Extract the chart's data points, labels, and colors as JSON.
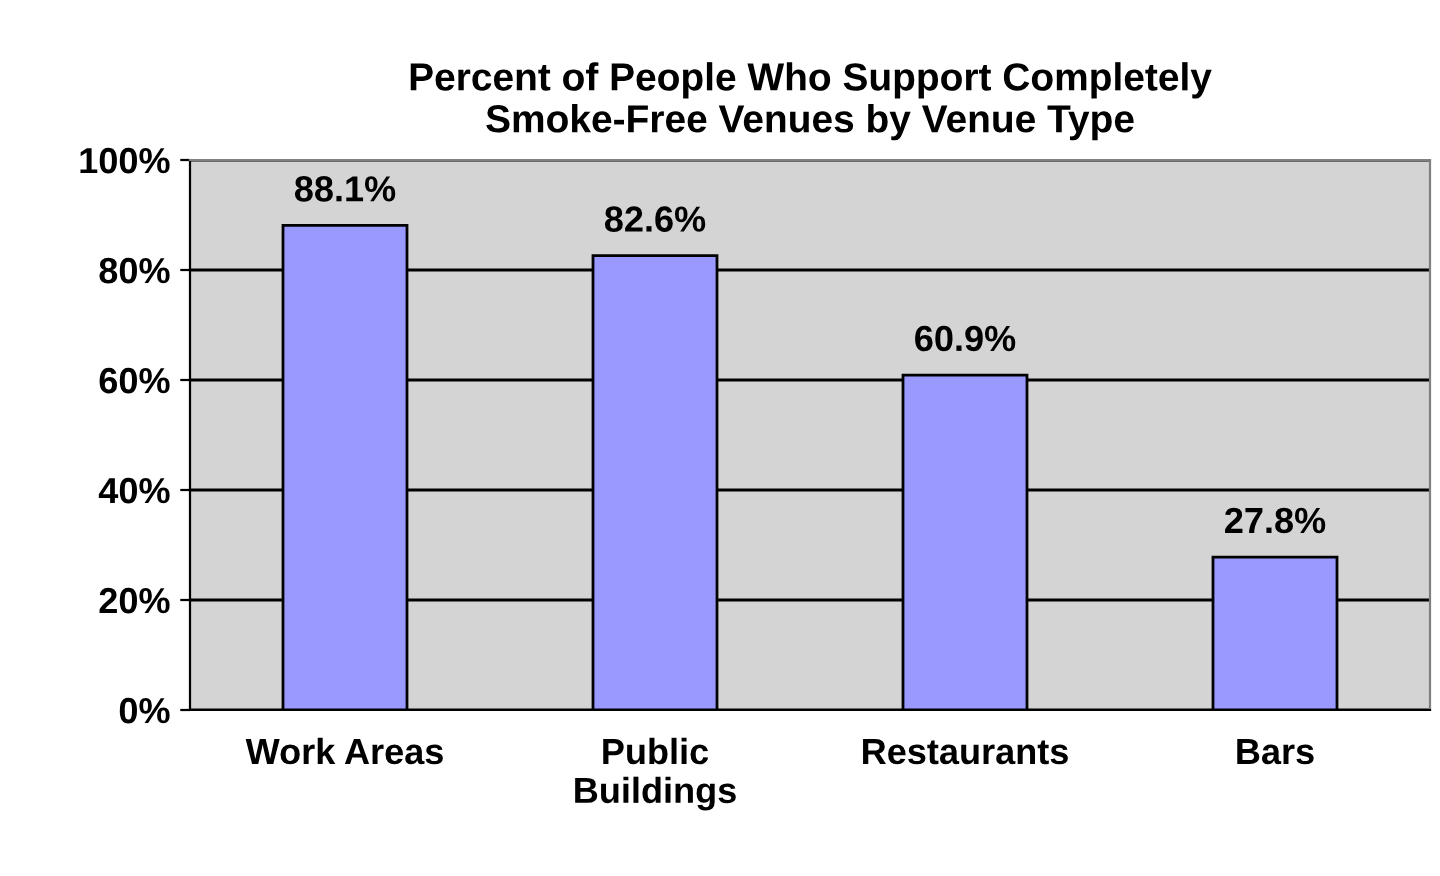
{
  "chart_data": {
    "type": "bar",
    "title": "Percent of People Who Support Completely\nSmoke-Free Venues by Venue Type",
    "categories": [
      "Work Areas",
      "Public\nBuildings",
      "Restaurants",
      "Bars"
    ],
    "values": [
      88.1,
      82.6,
      60.9,
      27.8
    ],
    "color": "#9999ff",
    "value_labels": [
      "88.1%",
      "82.6%",
      "60.9%",
      "27.8%"
    ],
    "ylim": [
      0,
      100
    ],
    "yticks": [
      {
        "value": 0,
        "label": "0%"
      },
      {
        "value": 20,
        "label": "20%"
      },
      {
        "value": 40,
        "label": "40%"
      },
      {
        "value": 60,
        "label": "60%"
      },
      {
        "value": 80,
        "label": "80%"
      },
      {
        "value": 100,
        "label": "100%"
      }
    ],
    "grid": "y"
  }
}
